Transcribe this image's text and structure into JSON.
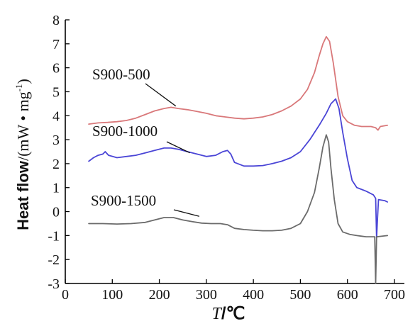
{
  "chart_data": {
    "type": "line",
    "title": "",
    "xlabel": {
      "italic": "T",
      "rest": "/℃"
    },
    "ylabel": {
      "main": "Heat flow",
      "unit": "/(mW • mg",
      "sup": "-1",
      "close": ")"
    },
    "xlim": [
      0,
      700
    ],
    "ylim": [
      -3,
      8
    ],
    "xticks": [
      "0",
      "100",
      "200",
      "300",
      "400",
      "500",
      "600",
      "700"
    ],
    "yticks": [
      "-3",
      "-2",
      "-1",
      "0",
      "1",
      "2",
      "3",
      "4",
      "5",
      "6",
      "7",
      "8"
    ],
    "grid": false,
    "series": [
      {
        "name": "S900-500",
        "color": "#d9787a",
        "points": [
          [
            50,
            3.65
          ],
          [
            70,
            3.7
          ],
          [
            90,
            3.72
          ],
          [
            110,
            3.75
          ],
          [
            130,
            3.8
          ],
          [
            150,
            3.9
          ],
          [
            170,
            4.05
          ],
          [
            190,
            4.2
          ],
          [
            210,
            4.3
          ],
          [
            225,
            4.35
          ],
          [
            240,
            4.3
          ],
          [
            260,
            4.25
          ],
          [
            280,
            4.18
          ],
          [
            300,
            4.1
          ],
          [
            320,
            4.0
          ],
          [
            340,
            3.95
          ],
          [
            360,
            3.9
          ],
          [
            380,
            3.87
          ],
          [
            400,
            3.9
          ],
          [
            420,
            3.95
          ],
          [
            440,
            4.05
          ],
          [
            460,
            4.2
          ],
          [
            480,
            4.4
          ],
          [
            500,
            4.7
          ],
          [
            515,
            5.1
          ],
          [
            530,
            5.8
          ],
          [
            540,
            6.5
          ],
          [
            548,
            7.0
          ],
          [
            555,
            7.3
          ],
          [
            562,
            7.1
          ],
          [
            570,
            6.2
          ],
          [
            580,
            4.8
          ],
          [
            590,
            4.0
          ],
          [
            600,
            3.75
          ],
          [
            615,
            3.6
          ],
          [
            630,
            3.55
          ],
          [
            650,
            3.55
          ],
          [
            660,
            3.5
          ],
          [
            665,
            3.4
          ],
          [
            670,
            3.55
          ],
          [
            685,
            3.6
          ]
        ],
        "label_anchor": [
          235,
          4.4
        ]
      },
      {
        "name": "S900-1000",
        "color": "#4a45d6",
        "points": [
          [
            50,
            2.1
          ],
          [
            60,
            2.25
          ],
          [
            70,
            2.35
          ],
          [
            80,
            2.4
          ],
          [
            85,
            2.5
          ],
          [
            92,
            2.35
          ],
          [
            110,
            2.25
          ],
          [
            130,
            2.3
          ],
          [
            150,
            2.35
          ],
          [
            170,
            2.45
          ],
          [
            190,
            2.55
          ],
          [
            210,
            2.65
          ],
          [
            225,
            2.65
          ],
          [
            240,
            2.6
          ],
          [
            260,
            2.5
          ],
          [
            280,
            2.4
          ],
          [
            300,
            2.3
          ],
          [
            320,
            2.35
          ],
          [
            335,
            2.5
          ],
          [
            345,
            2.55
          ],
          [
            352,
            2.4
          ],
          [
            360,
            2.05
          ],
          [
            380,
            1.9
          ],
          [
            400,
            1.9
          ],
          [
            420,
            1.92
          ],
          [
            440,
            2.0
          ],
          [
            460,
            2.1
          ],
          [
            480,
            2.25
          ],
          [
            500,
            2.5
          ],
          [
            520,
            3.0
          ],
          [
            540,
            3.6
          ],
          [
            555,
            4.1
          ],
          [
            565,
            4.5
          ],
          [
            575,
            4.7
          ],
          [
            582,
            4.3
          ],
          [
            590,
            3.3
          ],
          [
            600,
            2.2
          ],
          [
            610,
            1.3
          ],
          [
            620,
            1.0
          ],
          [
            640,
            0.85
          ],
          [
            655,
            0.7
          ],
          [
            660,
            0.55
          ],
          [
            662,
            -1.1
          ],
          [
            664,
            -0.3
          ],
          [
            666,
            0.5
          ],
          [
            680,
            0.45
          ],
          [
            685,
            0.4
          ]
        ],
        "label_anchor": [
          265,
          2.45
        ]
      },
      {
        "name": "S900-1500",
        "color": "#6b6b6b",
        "points": [
          [
            50,
            -0.5
          ],
          [
            80,
            -0.5
          ],
          [
            110,
            -0.52
          ],
          [
            140,
            -0.5
          ],
          [
            170,
            -0.45
          ],
          [
            190,
            -0.35
          ],
          [
            210,
            -0.25
          ],
          [
            230,
            -0.25
          ],
          [
            250,
            -0.35
          ],
          [
            270,
            -0.42
          ],
          [
            290,
            -0.48
          ],
          [
            310,
            -0.5
          ],
          [
            330,
            -0.5
          ],
          [
            345,
            -0.55
          ],
          [
            360,
            -0.7
          ],
          [
            380,
            -0.75
          ],
          [
            400,
            -0.78
          ],
          [
            420,
            -0.8
          ],
          [
            440,
            -0.8
          ],
          [
            460,
            -0.78
          ],
          [
            480,
            -0.7
          ],
          [
            500,
            -0.5
          ],
          [
            515,
            0.0
          ],
          [
            530,
            0.8
          ],
          [
            540,
            1.8
          ],
          [
            548,
            2.7
          ],
          [
            555,
            3.2
          ],
          [
            560,
            2.9
          ],
          [
            565,
            1.8
          ],
          [
            572,
            0.5
          ],
          [
            580,
            -0.5
          ],
          [
            590,
            -0.85
          ],
          [
            605,
            -0.95
          ],
          [
            620,
            -1.0
          ],
          [
            640,
            -1.05
          ],
          [
            658,
            -1.05
          ],
          [
            660,
            -3.0
          ],
          [
            662,
            -1.05
          ],
          [
            685,
            -1.0
          ]
        ],
        "label_anchor": [
          285,
          -0.2
        ]
      }
    ]
  }
}
